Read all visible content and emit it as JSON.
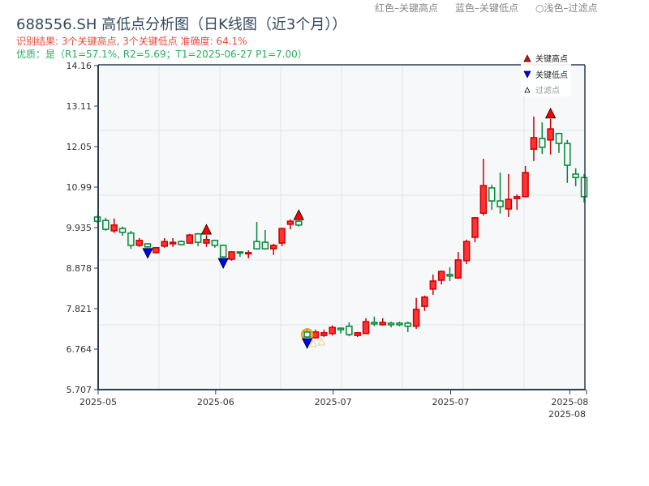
{
  "header": {
    "title": "688556.SH 高低点分析图（日K线图（近3个月））",
    "result_line": "识别结果: 3个关键高点, 3个关键低点  准确度: 64.1%",
    "quality_line": "优质：是（R1=57.1%, R2=5.69；T1=2025-06-27 P1=7.00）",
    "legend_top": [
      "红色–关键高点",
      "蓝色–关键低点",
      "○浅色–过滤点"
    ]
  },
  "chart_data": {
    "type": "candlestick",
    "title": "688556.SH 高低点分析图（日K线图（近3个月））",
    "ylim": [
      5.707,
      14.16
    ],
    "y_ticks": [
      "14.16",
      "13.11",
      "12.05",
      "10.99",
      "9.935",
      "8.878",
      "7.821",
      "6.764",
      "5.707"
    ],
    "x_ticks": [
      {
        "index": 0,
        "label": "2025-05"
      },
      {
        "index": 14,
        "label": "2025-06"
      },
      {
        "index": 28,
        "label": "2025-07"
      },
      {
        "index": 42,
        "label": "2025-07"
      },
      {
        "index": 56,
        "label": "2025-08"
      },
      {
        "index": 58,
        "label": "2025-08"
      }
    ],
    "legend": [
      "关键高点",
      "关键低点",
      "过滤点"
    ],
    "colors": {
      "up": "#ff3333",
      "up_edge": "#cc0000",
      "down": "#008833",
      "high": "#ff0000",
      "low": "#0000ff",
      "filtered": "#f5b041",
      "circle": "#f39c12"
    },
    "ohlc": [
      [
        10.21,
        10.25,
        10.06,
        10.1
      ],
      [
        10.12,
        10.19,
        9.85,
        9.89
      ],
      [
        9.85,
        10.17,
        9.79,
        10.0
      ],
      [
        9.91,
        9.96,
        9.72,
        9.81
      ],
      [
        9.79,
        9.85,
        9.38,
        9.47
      ],
      [
        9.47,
        9.66,
        9.43,
        9.6
      ],
      [
        9.51,
        9.53,
        9.41,
        9.43
      ],
      [
        9.28,
        9.43,
        9.26,
        9.41
      ],
      [
        9.45,
        9.66,
        9.41,
        9.57
      ],
      [
        9.51,
        9.66,
        9.43,
        9.55
      ],
      [
        9.57,
        9.6,
        9.47,
        9.49
      ],
      [
        9.53,
        9.77,
        9.51,
        9.74
      ],
      [
        9.77,
        9.79,
        9.45,
        9.55
      ],
      [
        9.53,
        9.74,
        9.43,
        9.62
      ],
      [
        9.6,
        9.62,
        9.41,
        9.47
      ],
      [
        9.47,
        9.49,
        9.15,
        9.17
      ],
      [
        9.11,
        9.32,
        9.07,
        9.3
      ],
      [
        9.3,
        9.3,
        9.17,
        9.28
      ],
      [
        9.26,
        9.34,
        9.13,
        9.28
      ],
      [
        9.57,
        10.08,
        9.36,
        9.38
      ],
      [
        9.55,
        9.87,
        9.36,
        9.38
      ],
      [
        9.38,
        9.51,
        9.22,
        9.47
      ],
      [
        9.53,
        9.93,
        9.45,
        9.91
      ],
      [
        10.02,
        10.15,
        9.89,
        10.1
      ],
      [
        10.1,
        10.12,
        9.96,
        10.0
      ],
      [
        7.21,
        7.31,
        7.06,
        7.08
      ],
      [
        7.06,
        7.27,
        7.04,
        7.21
      ],
      [
        7.12,
        7.27,
        7.08,
        7.19
      ],
      [
        7.17,
        7.38,
        7.12,
        7.33
      ],
      [
        7.31,
        7.33,
        7.17,
        7.27
      ],
      [
        7.36,
        7.46,
        7.1,
        7.14
      ],
      [
        7.12,
        7.21,
        7.08,
        7.19
      ],
      [
        7.17,
        7.57,
        7.17,
        7.48
      ],
      [
        7.46,
        7.61,
        7.36,
        7.42
      ],
      [
        7.4,
        7.57,
        7.38,
        7.46
      ],
      [
        7.44,
        7.48,
        7.33,
        7.4
      ],
      [
        7.44,
        7.48,
        7.36,
        7.4
      ],
      [
        7.44,
        7.48,
        7.21,
        7.36
      ],
      [
        7.36,
        8.1,
        7.29,
        7.8
      ],
      [
        7.88,
        8.16,
        7.76,
        8.12
      ],
      [
        8.33,
        8.71,
        8.18,
        8.54
      ],
      [
        8.56,
        8.81,
        8.45,
        8.79
      ],
      [
        8.71,
        8.9,
        8.54,
        8.67
      ],
      [
        8.62,
        9.3,
        8.6,
        9.09
      ],
      [
        9.07,
        9.62,
        8.98,
        9.57
      ],
      [
        9.68,
        10.21,
        9.55,
        10.19
      ],
      [
        10.31,
        11.73,
        10.25,
        11.03
      ],
      [
        10.97,
        11.05,
        10.4,
        10.63
      ],
      [
        10.63,
        11.37,
        10.3,
        10.48
      ],
      [
        10.42,
        11.33,
        10.21,
        10.67
      ],
      [
        10.69,
        10.8,
        10.4,
        10.74
      ],
      [
        10.74,
        11.54,
        10.74,
        11.37
      ],
      [
        11.98,
        12.83,
        11.67,
        12.28
      ],
      [
        12.26,
        12.68,
        11.86,
        12.03
      ],
      [
        12.22,
        12.77,
        11.84,
        12.51
      ],
      [
        12.39,
        12.41,
        11.88,
        12.13
      ],
      [
        12.13,
        12.22,
        11.1,
        11.56
      ],
      [
        11.33,
        11.48,
        11.01,
        11.24
      ],
      [
        11.24,
        11.33,
        10.59,
        10.74
      ]
    ],
    "key_highs": [
      13,
      24,
      54
    ],
    "key_lows": [
      6,
      15,
      25
    ],
    "circled": [
      25
    ],
    "filtered": [
      26,
      27
    ]
  }
}
